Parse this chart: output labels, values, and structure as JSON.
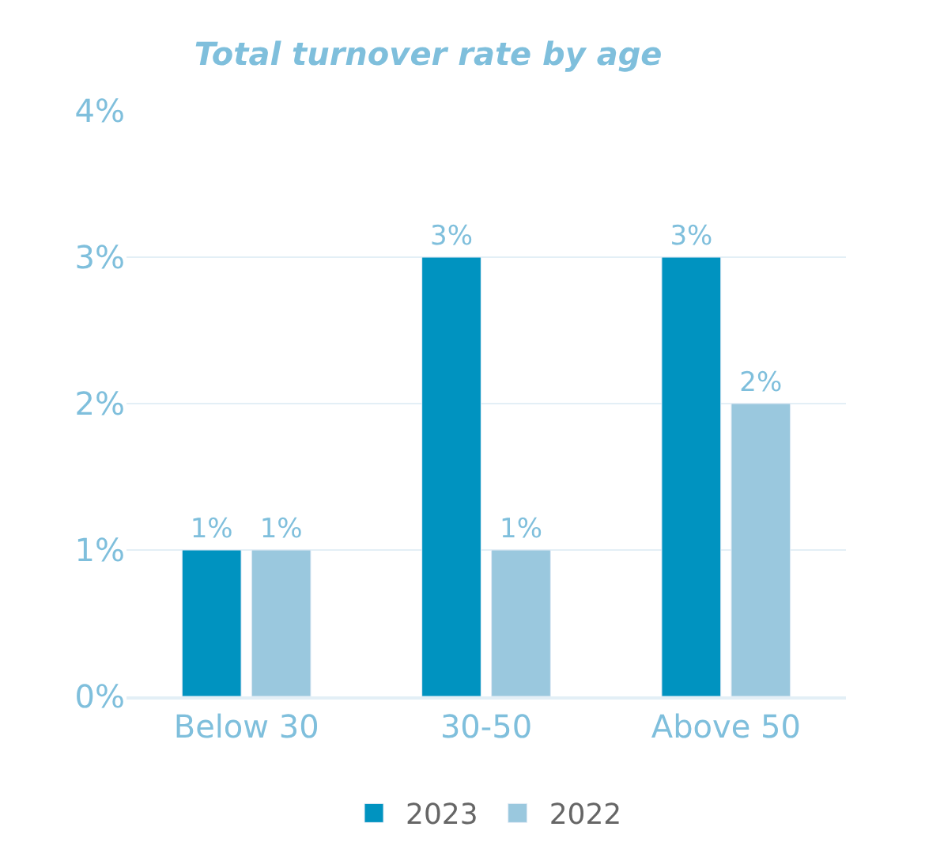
{
  "chart_data": {
    "type": "bar",
    "title": "Total turnover rate by age",
    "categories": [
      "Below 30",
      "30-50",
      "Above 50"
    ],
    "series": [
      {
        "name": "2023",
        "color": "#0093c0",
        "values": [
          1,
          3,
          3
        ],
        "value_labels": [
          "1%",
          "3%",
          "3%"
        ]
      },
      {
        "name": "2022",
        "color": "#9ac8de",
        "values": [
          1,
          1,
          2
        ],
        "value_labels": [
          "1%",
          "1%",
          "2%"
        ]
      }
    ],
    "ylim": [
      0,
      4
    ],
    "yticks": [
      {
        "value": 0,
        "label": "0%"
      },
      {
        "value": 1,
        "label": "1%"
      },
      {
        "value": 2,
        "label": "2%"
      },
      {
        "value": 3,
        "label": "3%"
      },
      {
        "value": 4,
        "label": "4%"
      }
    ],
    "grid": "y",
    "legend": "bottom"
  }
}
